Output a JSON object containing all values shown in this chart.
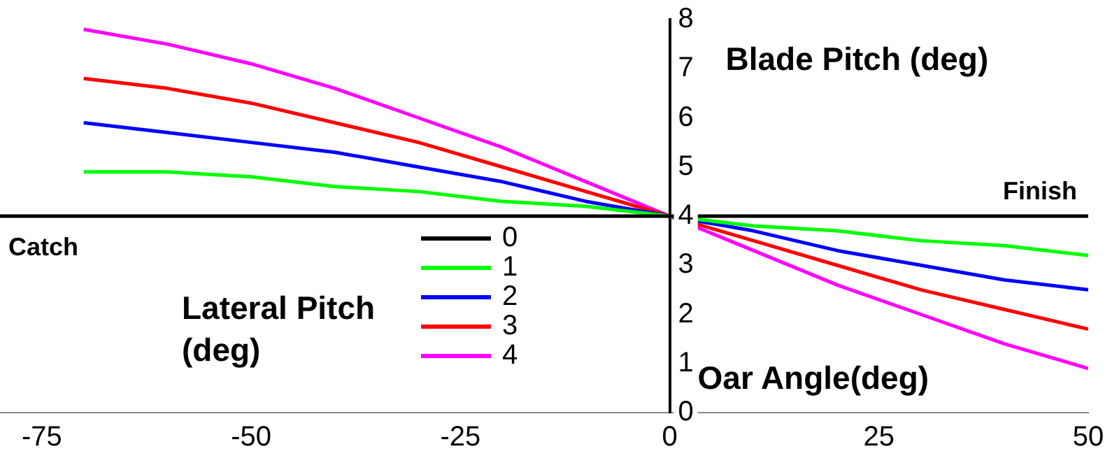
{
  "chart_data": {
    "type": "line",
    "ylabel": "Blade Pitch (deg)",
    "xlabel": "Oar Angle(deg)",
    "legend_title": "Lateral Pitch (deg)",
    "annotations": [
      "Finish",
      "Catch"
    ],
    "x": [
      -70,
      -60,
      -50,
      -40,
      -30,
      -20,
      -10,
      0,
      10,
      20,
      30,
      40,
      50
    ],
    "series": [
      {
        "name": "0",
        "color": "#000000",
        "x": [
          -80,
          50
        ],
        "values": [
          4,
          4
        ]
      },
      {
        "name": "1",
        "color": "#00ff00",
        "values": [
          4.9,
          4.9,
          4.8,
          4.6,
          4.5,
          4.3,
          4.2,
          4,
          3.8,
          3.7,
          3.5,
          3.4,
          3.2
        ]
      },
      {
        "name": "2",
        "color": "#0000ff",
        "values": [
          5.9,
          5.7,
          5.5,
          5.3,
          5,
          4.7,
          4.3,
          4,
          3.7,
          3.3,
          3,
          2.7,
          2.5
        ]
      },
      {
        "name": "3",
        "color": "#ff0000",
        "values": [
          6.8,
          6.6,
          6.3,
          5.9,
          5.5,
          5,
          4.5,
          4,
          3.5,
          3,
          2.5,
          2.1,
          1.7
        ]
      },
      {
        "name": "4",
        "color": "#ff00ff",
        "values": [
          7.8,
          7.5,
          7.1,
          6.6,
          6,
          5.4,
          4.7,
          4,
          3.3,
          2.6,
          2,
          1.4,
          0.9
        ]
      }
    ],
    "xlim": [
      -80,
      50
    ],
    "xticks": [
      -75,
      -50,
      -25,
      0,
      25,
      50
    ],
    "ylim": [
      0,
      8
    ],
    "yticks": [
      0,
      1,
      2,
      3,
      4,
      5,
      6,
      7,
      8
    ],
    "grid": false,
    "legend": "left",
    "marker": "none",
    "line_style": "solid"
  }
}
